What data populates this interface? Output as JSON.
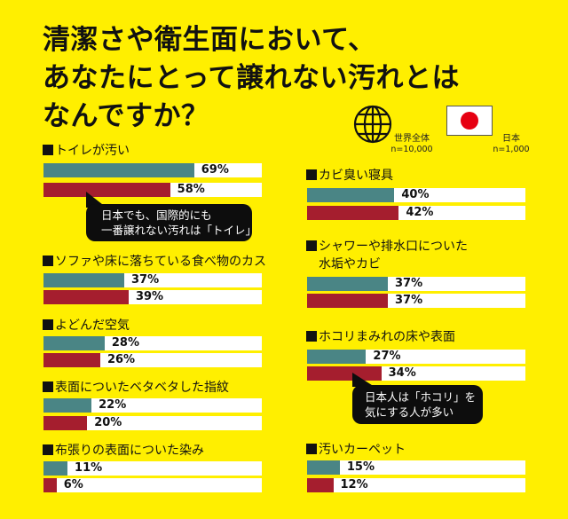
{
  "title": {
    "lines": [
      "清潔さや衛生面において、",
      "あなたにとって譲れない汚れとは",
      "なんですか？"
    ]
  },
  "legend": {
    "world": {
      "icon": "globe-icon",
      "label": "世界全体",
      "n": "n=10,000",
      "color": "#4A8585"
    },
    "japan": {
      "icon": "japan-flag-icon",
      "label": "日本",
      "n": "n=1,000",
      "color": "#A51E2E"
    }
  },
  "items": [
    {
      "label": "トイレが汚い",
      "world": 69,
      "japan": 58,
      "world_text": "69%",
      "japan_text": "58%"
    },
    {
      "label": "ソファや床に落ちている食べ物のカス",
      "world": 37,
      "japan": 39,
      "world_text": "37%",
      "japan_text": "39%"
    },
    {
      "label": "よどんだ空気",
      "world": 28,
      "japan": 26,
      "world_text": "28%",
      "japan_text": "26%"
    },
    {
      "label": "表面についたベタベタした指紋",
      "world": 22,
      "japan": 20,
      "world_text": "22%",
      "japan_text": "20%"
    },
    {
      "label": "布張りの表面についた染み",
      "world": 11,
      "japan": 6,
      "world_text": "11%",
      "japan_text": "6%"
    },
    {
      "label": "カビ臭い寝具",
      "world": 40,
      "japan": 42,
      "world_text": "40%",
      "japan_text": "42%"
    },
    {
      "label": "シャワーや排水口についた",
      "label2": "水垢やカビ",
      "world": 37,
      "japan": 37,
      "world_text": "37%",
      "japan_text": "37%"
    },
    {
      "label": "ホコリまみれの床や表面",
      "world": 27,
      "japan": 34,
      "world_text": "27%",
      "japan_text": "34%"
    },
    {
      "label": "汚いカーペット",
      "world": 15,
      "japan": 12,
      "world_text": "15%",
      "japan_text": "12%"
    }
  ],
  "callouts": [
    {
      "lines": [
        "日本でも、国際的にも",
        "一番譲れない汚れは「トイレ」"
      ]
    },
    {
      "lines": [
        "日本人は「ホコリ」を",
        "気にする人が多い"
      ]
    }
  ],
  "chart_data": {
    "type": "bar",
    "orientation": "horizontal",
    "title": "清潔さや衛生面において、あなたにとって譲れない汚れとはなんですか？",
    "categories": [
      "トイレが汚い",
      "ソファや床に落ちている食べ物のカス",
      "よどんだ空気",
      "表面についたベタベタした指紋",
      "布張りの表面についた染み",
      "カビ臭い寝具",
      "シャワーや排水口についた水垢やカビ",
      "ホコリまみれの床や表面",
      "汚いカーペット"
    ],
    "series": [
      {
        "name": "世界全体 (n=10,000)",
        "color": "#4A8585",
        "values": [
          69,
          37,
          28,
          22,
          11,
          40,
          37,
          27,
          15
        ]
      },
      {
        "name": "日本 (n=1,000)",
        "color": "#A51E2E",
        "values": [
          58,
          39,
          26,
          20,
          6,
          42,
          37,
          34,
          12
        ]
      }
    ],
    "unit": "%",
    "xlim": [
      0,
      100
    ],
    "grid": false,
    "legend_position": "top-right",
    "annotations": [
      "日本でも、国際的にも一番譲れない汚れは「トイレ」",
      "日本人は「ホコリ」を気にする人が多い"
    ]
  }
}
